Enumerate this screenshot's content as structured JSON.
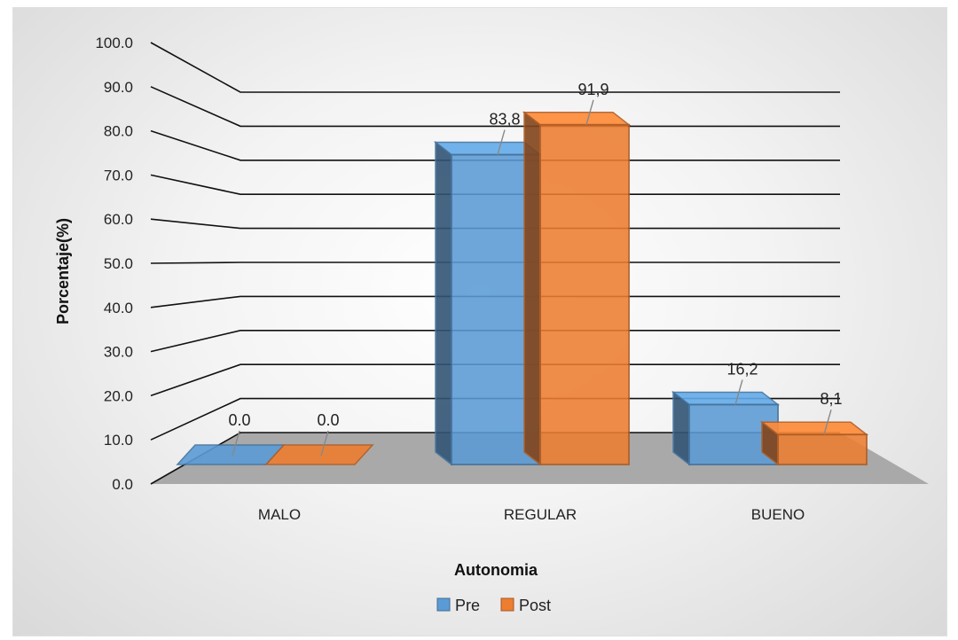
{
  "chart_data": {
    "type": "bar",
    "title": "",
    "xlabel": "Autonomia",
    "ylabel": "Porcentaje(%)",
    "categories": [
      "MALO",
      "REGULAR",
      "BUENO"
    ],
    "series": [
      {
        "name": "Pre",
        "values": [
          0.0,
          83.8,
          16.2
        ],
        "labels": [
          "0.0",
          "83,8",
          "16,2"
        ],
        "color": "#5b9bd5"
      },
      {
        "name": "Post",
        "values": [
          0.0,
          91.9,
          8.1
        ],
        "labels": [
          "0.0",
          "91,9",
          "8,1"
        ],
        "color": "#ed7d31"
      }
    ],
    "ylim": [
      0,
      100
    ],
    "yticks": [
      "0.0",
      "10.0",
      "20.0",
      "30.0",
      "40.0",
      "50.0",
      "60.0",
      "70.0",
      "80.0",
      "90.0",
      "100.0"
    ],
    "grid": true,
    "legend_position": "bottom",
    "style": "3d-column"
  }
}
